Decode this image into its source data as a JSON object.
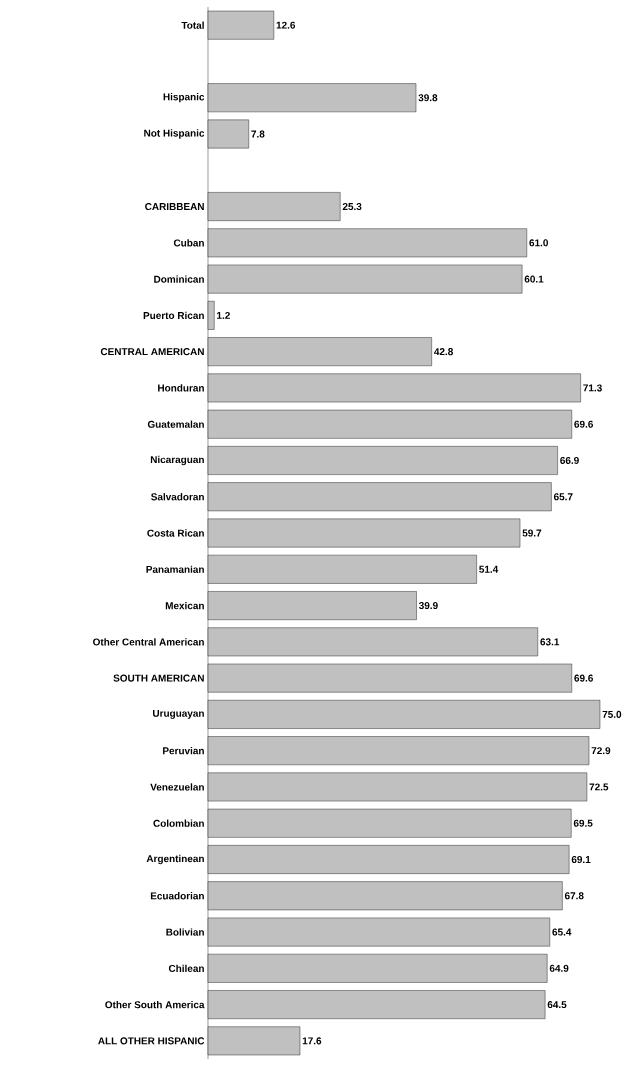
{
  "chart_data": {
    "type": "bar",
    "orientation": "horizontal",
    "value_labels": [
      "12.6",
      null,
      "39.8",
      "7.8",
      null,
      "25.3",
      "61.0",
      "60.1",
      "1.2",
      "42.8",
      "71.3",
      "69.6",
      "66.9",
      "65.7",
      "59.7",
      "51.4",
      "39.9",
      "63.1",
      "69.6",
      "75.0",
      "72.9",
      "72.5",
      "69.5",
      "69.1",
      "67.8",
      "65.4",
      "64.9",
      "64.5",
      "17.6"
    ],
    "color": "#c0c0c0",
    "categories": [
      "Total",
      null,
      "Hispanic",
      "Not Hispanic",
      null,
      "CARIBBEAN",
      "Cuban",
      "Dominican",
      "Puerto Rican",
      "CENTRAL AMERICAN",
      "Honduran",
      "Guatemalan",
      "Nicaraguan",
      "Salvadoran",
      "Costa Rican",
      "Panamanian",
      "Mexican",
      "Other Central American",
      "SOUTH AMERICAN",
      "Uruguayan",
      "Peruvian",
      "Venezuelan",
      "Colombian",
      "Argentinean",
      "Ecuadorian",
      "Bolivian",
      "Chilean",
      "Other South America",
      "ALL OTHER HISPANIC"
    ],
    "values": [
      12.6,
      null,
      39.8,
      7.8,
      null,
      25.3,
      61.0,
      60.1,
      1.2,
      42.8,
      71.3,
      69.6,
      66.9,
      65.7,
      59.7,
      51.4,
      39.9,
      63.1,
      69.6,
      75.0,
      72.9,
      72.5,
      69.5,
      69.1,
      67.8,
      65.4,
      64.9,
      64.5,
      17.6
    ]
  }
}
